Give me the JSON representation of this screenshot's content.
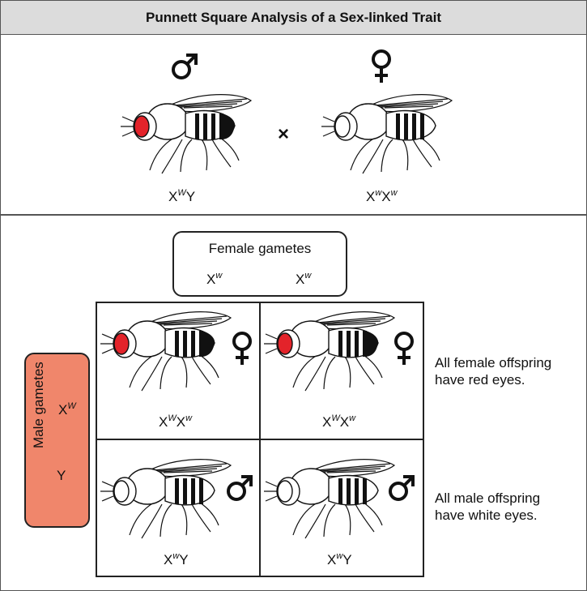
{
  "title": "Punnett Square Analysis of a Sex-linked Trait",
  "parents": {
    "male": {
      "symbol": "♂",
      "genotype": [
        {
          "base": "X",
          "sup": "W"
        },
        {
          "base": "Y",
          "sup": ""
        }
      ],
      "eye_color": "#e3232a"
    },
    "female": {
      "symbol": "♀",
      "genotype": [
        {
          "base": "X",
          "sup": "w"
        },
        {
          "base": "X",
          "sup": "w"
        }
      ],
      "eye_color": "#ffffff"
    },
    "cross_symbol": "×"
  },
  "female_gametes": {
    "label": "Female gametes",
    "alleles": [
      {
        "base": "X",
        "sup": "w"
      },
      {
        "base": "X",
        "sup": "w"
      }
    ]
  },
  "male_gametes": {
    "label": "Male gametes",
    "alleles": [
      {
        "base": "X",
        "sup": "W"
      },
      {
        "base": "Y",
        "sup": ""
      }
    ],
    "color": "#f0866b"
  },
  "offspring": [
    {
      "sex_symbol": "♀",
      "genotype": [
        {
          "base": "X",
          "sup": "W"
        },
        {
          "base": "X",
          "sup": "w"
        }
      ],
      "eye_color": "#e3232a"
    },
    {
      "sex_symbol": "♀",
      "genotype": [
        {
          "base": "X",
          "sup": "W"
        },
        {
          "base": "X",
          "sup": "w"
        }
      ],
      "eye_color": "#e3232a"
    },
    {
      "sex_symbol": "♂",
      "genotype": [
        {
          "base": "X",
          "sup": "w"
        },
        {
          "base": "Y",
          "sup": ""
        }
      ],
      "eye_color": "#ffffff"
    },
    {
      "sex_symbol": "♂",
      "genotype": [
        {
          "base": "X",
          "sup": "w"
        },
        {
          "base": "Y",
          "sup": ""
        }
      ],
      "eye_color": "#ffffff"
    }
  ],
  "notes": {
    "female": [
      "All female offspring",
      "have red eyes."
    ],
    "male": [
      "All male offspring",
      "have white eyes."
    ]
  }
}
